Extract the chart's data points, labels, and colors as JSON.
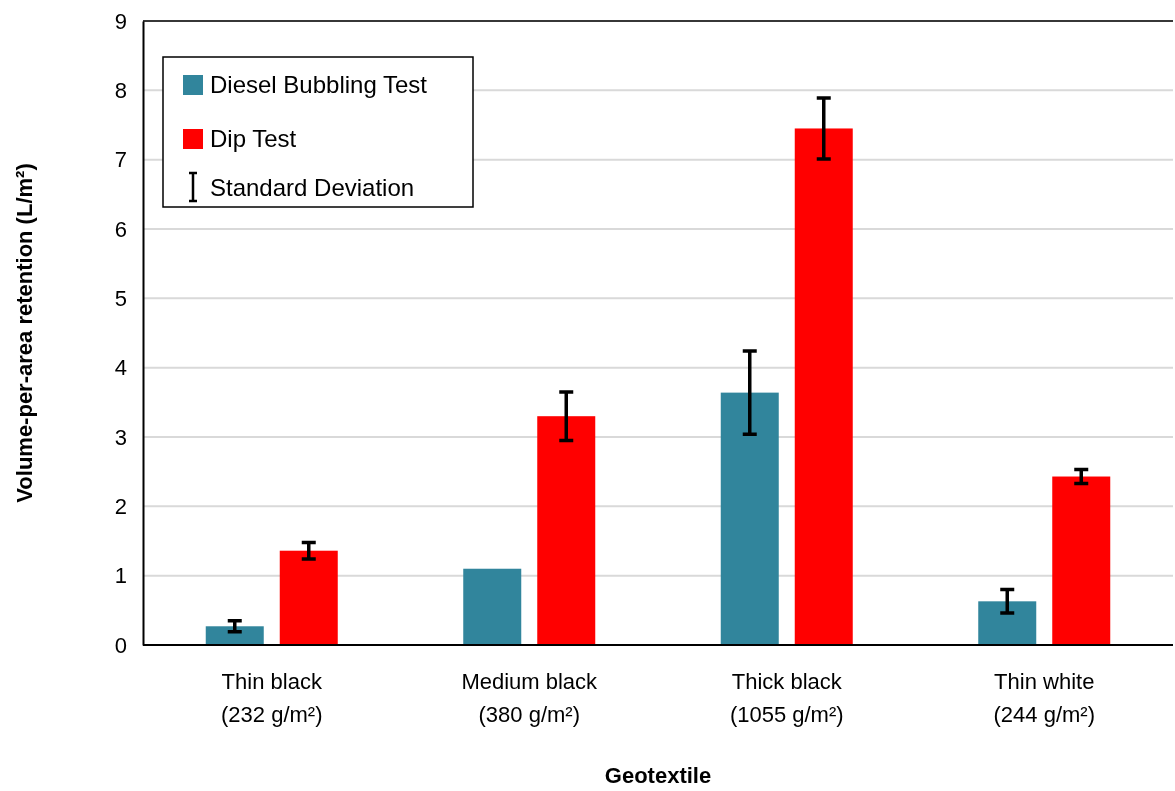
{
  "chart_data": {
    "type": "bar",
    "xlabel": "Geotextile",
    "ylabel": "Volume-per-area retention (L/m²)",
    "categories": [
      "Thin black (232 g/m²)",
      "Medium black (380 g/m²)",
      "Thick black (1055 g/m²)",
      "Thin white (244 g/m²)"
    ],
    "series": [
      {
        "name": "Diesel Bubbling Test",
        "color": "#31859c",
        "values": [
          0.27,
          1.1,
          3.64,
          0.63
        ],
        "errors": [
          0.08,
          null,
          0.6,
          0.17
        ]
      },
      {
        "name": "Dip Test",
        "color": "#ff0000",
        "values": [
          1.36,
          3.3,
          7.45,
          2.43
        ],
        "errors": [
          0.12,
          0.35,
          0.44,
          0.1
        ]
      }
    ],
    "ylim": [
      0,
      9
    ],
    "yticks": [
      0,
      1,
      2,
      3,
      4,
      5,
      6,
      7,
      8,
      9
    ],
    "grid": "y",
    "legend": "top left",
    "annotations": [
      "Standard Deviation"
    ]
  }
}
